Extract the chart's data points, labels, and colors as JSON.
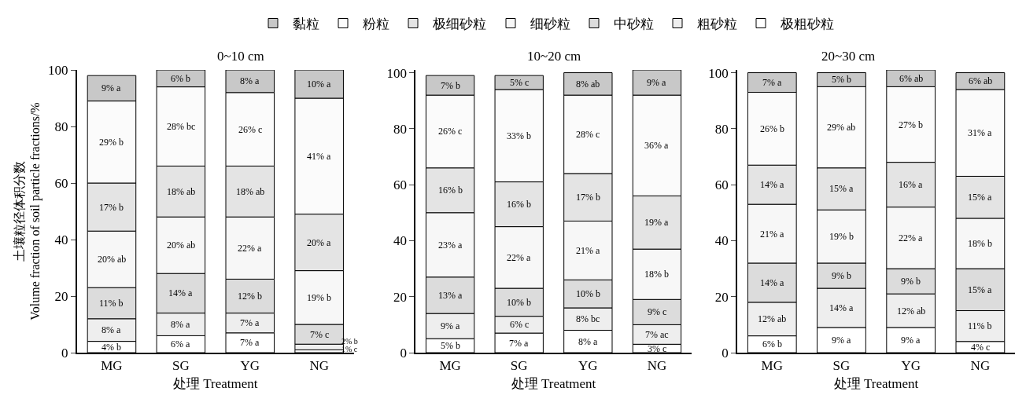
{
  "chart_data": [
    {
      "type": "bar",
      "stacked": true,
      "title": "0~10 cm",
      "xlabel": "处理 Treatment",
      "ylabel": "土壤粒径体积分数\nVolume fraction of soil particle fractions/%",
      "categories": [
        "MG",
        "SG",
        "YG",
        "NG"
      ],
      "ylim": [
        0,
        100
      ],
      "yticks": [
        0,
        20,
        40,
        60,
        80,
        100
      ],
      "legend": "top",
      "series": [
        {
          "name": "极粗砂粒",
          "color": "#ffffff",
          "values": [
            4,
            6,
            7,
            1
          ],
          "value_labels": [
            "4% b",
            "6% a",
            "7% a",
            "1% c"
          ]
        },
        {
          "name": "粗砂粒",
          "color": "#eeeeee",
          "values": [
            8,
            8,
            7,
            2
          ],
          "value_labels": [
            "8% a",
            "8% a",
            "7% a",
            "2% b"
          ]
        },
        {
          "name": "中砂粒",
          "color": "#dcdcdc",
          "values": [
            11,
            14,
            12,
            7
          ],
          "value_labels": [
            "11% b",
            "14% a",
            "12% b",
            "7% c"
          ]
        },
        {
          "name": "细砂粒",
          "color": "#f7f7f7",
          "values": [
            20,
            20,
            22,
            19
          ],
          "value_labels": [
            "20% ab",
            "20% ab",
            "22% a",
            "19% b"
          ]
        },
        {
          "name": "极细砂粒",
          "color": "#e4e4e4",
          "values": [
            17,
            18,
            18,
            20
          ],
          "value_labels": [
            "17% b",
            "18% ab",
            "18% ab",
            "20% a"
          ]
        },
        {
          "name": "粉粒",
          "color": "#fbfbfb",
          "values": [
            29,
            28,
            26,
            41
          ],
          "value_labels": [
            "29% b",
            "28% bc",
            "26% c",
            "41% a"
          ]
        },
        {
          "name": "黏粒",
          "color": "#c8c8c8",
          "values": [
            9,
            6,
            8,
            10
          ],
          "value_labels": [
            "9% a",
            "6% b",
            "8% a",
            "10% a"
          ]
        }
      ]
    },
    {
      "type": "bar",
      "stacked": true,
      "title": "10~20 cm",
      "xlabel": "处理 Treatment",
      "categories": [
        "MG",
        "SG",
        "YG",
        "NG"
      ],
      "ylim": [
        0,
        101
      ],
      "yticks": [
        0,
        20,
        40,
        60,
        80,
        100
      ],
      "series": [
        {
          "color": "#ffffff",
          "values": [
            5,
            7,
            8,
            3
          ],
          "value_labels": [
            "5% b",
            "7% a",
            "8% a",
            "3% c"
          ]
        },
        {
          "color": "#eeeeee",
          "values": [
            9,
            6,
            8,
            7
          ],
          "value_labels": [
            "9% a",
            "6% c",
            "8% bc",
            "7% ac"
          ]
        },
        {
          "color": "#dcdcdc",
          "values": [
            13,
            10,
            10,
            9
          ],
          "value_labels": [
            "13% a",
            "10% b",
            "10% b",
            "9% c"
          ]
        },
        {
          "color": "#f7f7f7",
          "values": [
            23,
            22,
            21,
            18
          ],
          "value_labels": [
            "23% a",
            "22% a",
            "21% a",
            "18% b"
          ]
        },
        {
          "color": "#e4e4e4",
          "values": [
            16,
            16,
            17,
            19
          ],
          "value_labels": [
            "16% b",
            "16% b",
            "17% b",
            "19% a"
          ]
        },
        {
          "color": "#fbfbfb",
          "values": [
            26,
            33,
            28,
            36
          ],
          "value_labels": [
            "26% c",
            "33% b",
            "28% c",
            "36% a"
          ]
        },
        {
          "color": "#c8c8c8",
          "values": [
            7,
            5,
            8,
            9
          ],
          "value_labels": [
            "7% b",
            "5% c",
            "8% ab",
            "9% a"
          ]
        }
      ]
    },
    {
      "type": "bar",
      "stacked": true,
      "title": "20~30 cm",
      "xlabel": "处理 Treatment",
      "categories": [
        "MG",
        "SG",
        "YG",
        "NG"
      ],
      "ylim": [
        0,
        101
      ],
      "yticks": [
        0,
        20,
        40,
        60,
        80,
        100
      ],
      "series": [
        {
          "color": "#ffffff",
          "values": [
            6,
            9,
            9,
            4
          ],
          "value_labels": [
            "6% b",
            "9% a",
            "9% a",
            "4% c"
          ]
        },
        {
          "color": "#eeeeee",
          "values": [
            12,
            14,
            12,
            11
          ],
          "value_labels": [
            "12% ab",
            "14% a",
            "12% ab",
            "11% b"
          ]
        },
        {
          "color": "#dcdcdc",
          "values": [
            14,
            9,
            9,
            15
          ],
          "value_labels": [
            "14% a",
            "9% b",
            "9% b",
            "15% a"
          ]
        },
        {
          "color": "#f7f7f7",
          "values": [
            21,
            19,
            22,
            18
          ],
          "value_labels": [
            "21% a",
            "19% b",
            "22% a",
            "18% b"
          ]
        },
        {
          "color": "#e4e4e4",
          "values": [
            14,
            15,
            16,
            15
          ],
          "value_labels": [
            "14% a",
            "15% a",
            "16% a",
            "15% a"
          ]
        },
        {
          "color": "#fbfbfb",
          "values": [
            26,
            29,
            27,
            31
          ],
          "value_labels": [
            "26% b",
            "29% ab",
            "27% b",
            "31% a"
          ]
        },
        {
          "color": "#c8c8c8",
          "values": [
            7,
            5,
            6,
            6
          ],
          "value_labels": [
            "7% a",
            "5% b",
            "6% ab",
            "6% ab"
          ]
        }
      ]
    }
  ]
}
